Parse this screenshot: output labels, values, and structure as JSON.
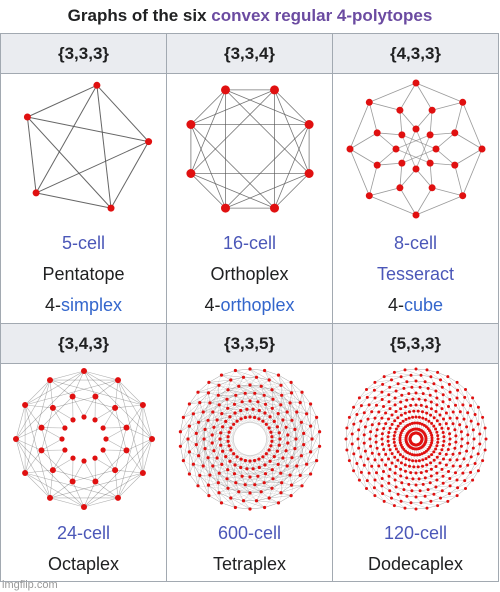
{
  "caption": {
    "prefix": "Graphs of the six",
    "link": "convex regular 4-polytopes"
  },
  "cells": [
    {
      "symbol": "{3,3,3}",
      "name": "5-cell",
      "alt_name": "Pentatope",
      "family_prefix": "4-",
      "family_link": "simplex",
      "graph": "pentatope"
    },
    {
      "symbol": "{3,3,4}",
      "name": "16-cell",
      "alt_name": "Orthoplex",
      "family_prefix": "4-",
      "family_link": "orthoplex",
      "graph": "orthoplex"
    },
    {
      "symbol": "{4,3,3}",
      "name": "8-cell",
      "alt_name": "Tesseract",
      "family_prefix": "4-",
      "family_link": "cube",
      "graph": "tesseract"
    },
    {
      "symbol": "{3,4,3}",
      "name": "24-cell",
      "alt_name": "Octaplex",
      "graph": "24cell"
    },
    {
      "symbol": "{3,3,5}",
      "name": "600-cell",
      "alt_name": "Tetraplex",
      "graph": "600cell"
    },
    {
      "symbol": "{5,3,3}",
      "name": "120-cell",
      "alt_name": "Dodecaplex",
      "graph": "120cell"
    }
  ],
  "colors": {
    "vertex": "#e01010",
    "edge": "#555555",
    "link_purple": "#6b4ba1",
    "link_blue": "#3366cc",
    "header_bg": "#eaecf0"
  },
  "watermark": "imgflip.com"
}
